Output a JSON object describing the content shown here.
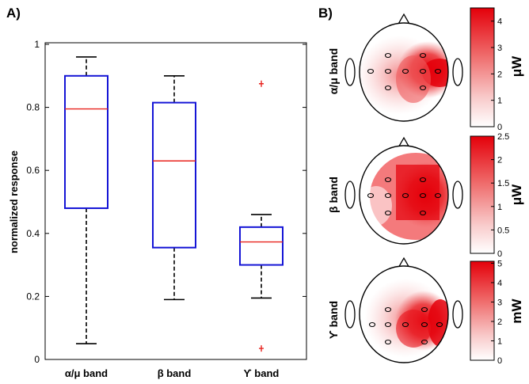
{
  "panels": {
    "a": "A)",
    "b": "B)"
  },
  "chart_data": [
    {
      "type": "box",
      "ylabel": "normalized response",
      "ylim": [
        0,
        1
      ],
      "yticks": [
        "0",
        "0.2",
        "0.4",
        "0.6",
        "0.8",
        "1"
      ],
      "categories": [
        "α/μ band",
        "β band",
        "ϒ band"
      ],
      "boxes": [
        {
          "whisker_low": 0.05,
          "q1": 0.48,
          "median": 0.795,
          "q3": 0.9,
          "whisker_high": 0.96,
          "outliers": []
        },
        {
          "whisker_low": 0.19,
          "q1": 0.355,
          "median": 0.63,
          "q3": 0.815,
          "whisker_high": 0.9,
          "outliers": []
        },
        {
          "whisker_low": 0.195,
          "q1": 0.3,
          "median": 0.373,
          "q3": 0.42,
          "whisker_high": 0.46,
          "outliers": [
            0.875,
            0.035
          ]
        }
      ],
      "colors": {
        "box": "#1515d6",
        "median": "#e8231e",
        "whisker": "#000000",
        "outlier": "#e8231e"
      }
    },
    {
      "type": "heatmap",
      "panels": [
        {
          "label": "α/μ band",
          "unit": "μW",
          "range": [
            0,
            4.5
          ],
          "ticks": [
            "0",
            "1",
            "2",
            "3",
            "4"
          ]
        },
        {
          "label": "β band",
          "unit": "μW",
          "range": [
            0,
            2.5
          ],
          "ticks": [
            "0",
            "0.5",
            "1",
            "1.5",
            "2",
            "2.5"
          ]
        },
        {
          "label": "ϒ band",
          "unit": "mW",
          "range": [
            0,
            5.1
          ],
          "ticks": [
            "0",
            "1",
            "2",
            "3",
            "4",
            "5"
          ]
        }
      ],
      "colormap": [
        "#ffffff",
        "#e8000b"
      ]
    }
  ]
}
